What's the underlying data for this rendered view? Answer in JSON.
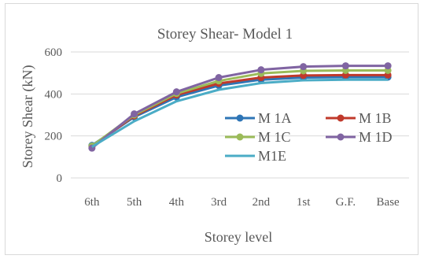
{
  "chart_data": {
    "type": "line",
    "title": "Storey Shear- Model 1",
    "xlabel": "Storey level",
    "ylabel": "Storey Shear (kN)",
    "categories": [
      "6th",
      "5th",
      "4th",
      "3rd",
      "2nd",
      "1st",
      "G.F.",
      "Base"
    ],
    "yticks": [
      0,
      200,
      400,
      600
    ],
    "ylim": [
      0,
      600
    ],
    "grid": true,
    "legend_position": "center-right",
    "series": [
      {
        "name": "M 1A",
        "color": "#2e75b6",
        "values": [
          155,
          290,
          385,
          440,
          468,
          478,
          480,
          480
        ]
      },
      {
        "name": "M 1B",
        "color": "#c0392b",
        "values": [
          150,
          295,
          395,
          450,
          478,
          488,
          490,
          490
        ]
      },
      {
        "name": "M 1C",
        "color": "#9bbb59",
        "values": [
          152,
          300,
          402,
          462,
          498,
          510,
          512,
          512
        ]
      },
      {
        "name": "M 1D",
        "color": "#8064a2",
        "values": [
          142,
          305,
          410,
          478,
          515,
          530,
          534,
          534
        ]
      },
      {
        "name": "M1E",
        "color": "#4bacc6",
        "values": [
          148,
          270,
          365,
          420,
          452,
          465,
          468,
          468
        ]
      }
    ]
  }
}
